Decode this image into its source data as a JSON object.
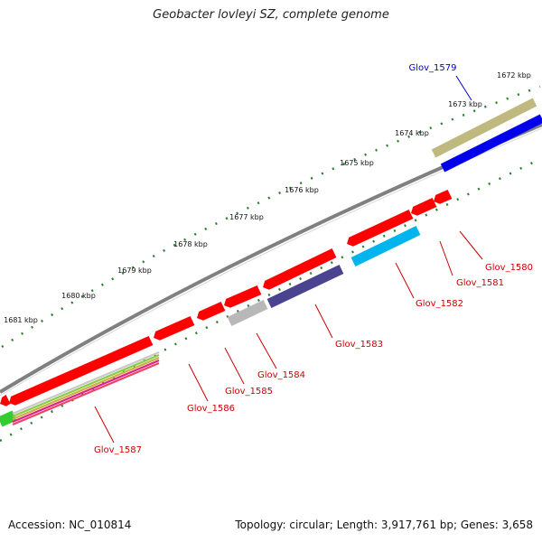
{
  "title": "Geobacter lovleyi SZ, complete genome",
  "footer": {
    "accession": "Accession: NC_010814",
    "stats": "Topology: circular; Length: 3,917,761 bp; Genes: 3,658"
  },
  "colors": {
    "background": "#ffffff",
    "backbone": "#808080",
    "tick": "#2e7d32",
    "gene_default": "#ff0000",
    "label_red": "#cc0000",
    "label_blue": "#0000cc"
  },
  "kbp_ticks": [
    "1672 kbp",
    "1673 kbp",
    "1674 kbp",
    "1675 kbp",
    "1676 kbp",
    "1677 kbp",
    "1678 kbp",
    "1679 kbp",
    "1680 kbp",
    "1681 kbp"
  ],
  "gene_labels": [
    "Glov_1579",
    "Glov_1580",
    "Glov_1581",
    "Glov_1582",
    "Glov_1583",
    "Glov_1584",
    "Glov_1585",
    "Glov_1586",
    "Glov_1587"
  ],
  "tracks": {
    "olive": "#bfb97f",
    "blue": "#0000ee",
    "cyan": "#00b4ee",
    "navy": "#4a4490",
    "gray": "#b8b8b8",
    "green": "#33cc33",
    "magenta": "#dd1188"
  }
}
